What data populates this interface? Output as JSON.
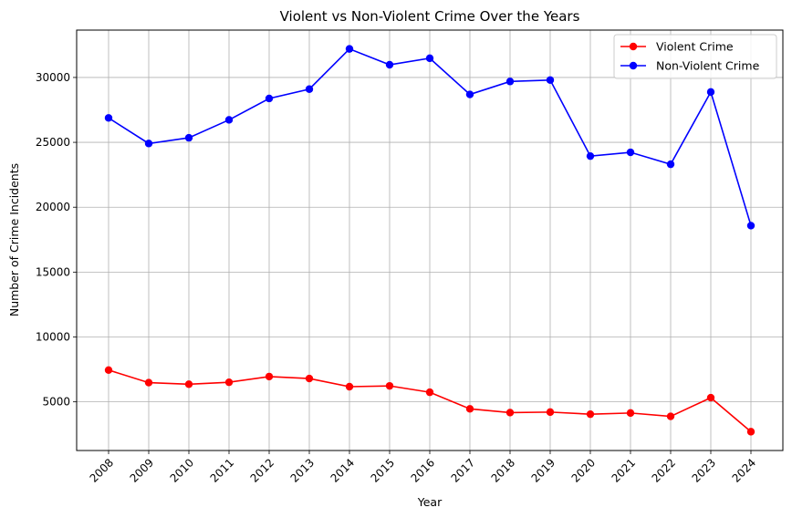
{
  "chart_data": {
    "type": "line",
    "title": "Violent vs Non-Violent Crime Over the Years",
    "xlabel": "Year",
    "ylabel": "Number of Crime Incidents",
    "categories": [
      "2008",
      "2009",
      "2010",
      "2011",
      "2012",
      "2013",
      "2014",
      "2015",
      "2016",
      "2017",
      "2018",
      "2019",
      "2020",
      "2021",
      "2022",
      "2023",
      "2024"
    ],
    "series": [
      {
        "name": "Violent Crime",
        "color": "#ff0000",
        "values": [
          7450,
          6480,
          6360,
          6510,
          6950,
          6800,
          6170,
          6230,
          5740,
          4460,
          4170,
          4210,
          4050,
          4140,
          3880,
          5320,
          2700
        ]
      },
      {
        "name": "Non-Violent Crime",
        "color": "#0000ff",
        "values": [
          26880,
          24910,
          25350,
          26730,
          28380,
          29100,
          32200,
          30980,
          31480,
          28690,
          29690,
          29800,
          23940,
          24230,
          23310,
          28880,
          18580
        ]
      }
    ],
    "yticks": [
      5000,
      10000,
      15000,
      20000,
      25000,
      30000
    ],
    "ylim": [
      1250,
      33650
    ],
    "grid": true,
    "legend_position": "top-right",
    "xtick_rotation": 45
  }
}
